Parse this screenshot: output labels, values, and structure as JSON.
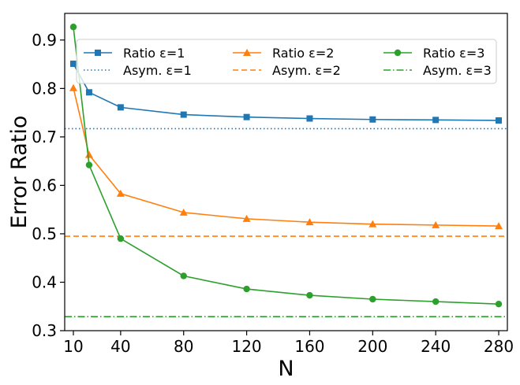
{
  "chart_data": {
    "type": "line",
    "title": "",
    "xlabel": "N",
    "ylabel": "Error Ratio",
    "xlim": [
      4.5,
      285.5
    ],
    "ylim": [
      0.3,
      0.955
    ],
    "xticks": [
      10,
      40,
      80,
      120,
      160,
      200,
      240,
      280
    ],
    "yticks": [
      0.3,
      0.4,
      0.5,
      0.6,
      0.7,
      0.8,
      0.9
    ],
    "ytick_labels": [
      "0.3",
      "0.4",
      "0.5",
      "0.6",
      "0.7",
      "0.8",
      "0.9"
    ],
    "x": [
      10,
      20,
      40,
      80,
      120,
      160,
      200,
      240,
      280
    ],
    "series": [
      {
        "name": "Ratio ε=1",
        "color": "#1f77b4",
        "marker": "square",
        "values": [
          0.851,
          0.792,
          0.761,
          0.746,
          0.741,
          0.738,
          0.736,
          0.735,
          0.734
        ]
      },
      {
        "name": "Ratio ε=2",
        "color": "#ff7f0e",
        "marker": "triangle",
        "values": [
          0.801,
          0.663,
          0.583,
          0.544,
          0.531,
          0.524,
          0.52,
          0.518,
          0.516
        ]
      },
      {
        "name": "Ratio ε=3",
        "color": "#2ca02c",
        "marker": "circle",
        "values": [
          0.927,
          0.642,
          0.49,
          0.413,
          0.386,
          0.373,
          0.365,
          0.36,
          0.355
        ]
      }
    ],
    "asymptotes": [
      {
        "name": "Asym. ε=1",
        "color": "#1f77b4",
        "style": "dotted",
        "value": 0.717
      },
      {
        "name": "Asym. ε=2",
        "color": "#ff7f0e",
        "style": "dashed",
        "value": 0.495
      },
      {
        "name": "Asym. ε=3",
        "color": "#2ca02c",
        "style": "dashdot",
        "value": 0.329
      }
    ],
    "legend": {
      "location": "top",
      "columns": 3
    }
  }
}
